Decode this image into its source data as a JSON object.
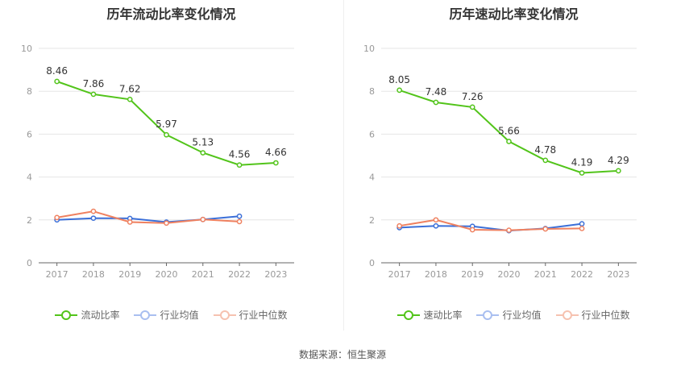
{
  "chart_data": [
    {
      "type": "line",
      "title": "历年流动比率变化情况",
      "categories": [
        "2017",
        "2018",
        "2019",
        "2020",
        "2021",
        "2022",
        "2023"
      ],
      "ylim": [
        0,
        10
      ],
      "yticks": [
        0,
        2,
        4,
        6,
        8,
        10
      ],
      "grid": true,
      "legend_position": "bottom",
      "series": [
        {
          "name": "流动比率",
          "values": [
            8.46,
            7.86,
            7.62,
            5.97,
            5.13,
            4.56,
            4.66
          ],
          "labels": [
            "8.46",
            "7.86",
            "7.62",
            "5.97",
            "5.13",
            "4.56",
            "4.66"
          ],
          "color": "#52c41a"
        },
        {
          "name": "行业均值",
          "values": [
            2.0,
            2.08,
            2.07,
            1.9,
            2.02,
            2.17,
            null
          ],
          "color": "#3b6fd8"
        },
        {
          "name": "行业中位数",
          "values": [
            2.11,
            2.4,
            1.9,
            1.85,
            2.02,
            1.92,
            null
          ],
          "color": "#ef8160"
        }
      ]
    },
    {
      "type": "line",
      "title": "历年速动比率变化情况",
      "categories": [
        "2017",
        "2018",
        "2019",
        "2020",
        "2021",
        "2022",
        "2023"
      ],
      "ylim": [
        0,
        10
      ],
      "yticks": [
        0,
        2,
        4,
        6,
        8,
        10
      ],
      "grid": true,
      "legend_position": "bottom",
      "series": [
        {
          "name": "速动比率",
          "values": [
            8.05,
            7.48,
            7.26,
            5.66,
            4.78,
            4.19,
            4.29
          ],
          "labels": [
            "8.05",
            "7.48",
            "7.26",
            "5.66",
            "4.78",
            "4.19",
            "4.29"
          ],
          "color": "#52c41a"
        },
        {
          "name": "行业均值",
          "values": [
            1.64,
            1.72,
            1.7,
            1.5,
            1.6,
            1.82,
            null
          ],
          "color": "#3b6fd8"
        },
        {
          "name": "行业中位数",
          "values": [
            1.72,
            2.0,
            1.54,
            1.52,
            1.58,
            1.6,
            null
          ],
          "color": "#ef8160"
        }
      ]
    }
  ],
  "footer": {
    "source": "数据来源：恒生聚源"
  }
}
